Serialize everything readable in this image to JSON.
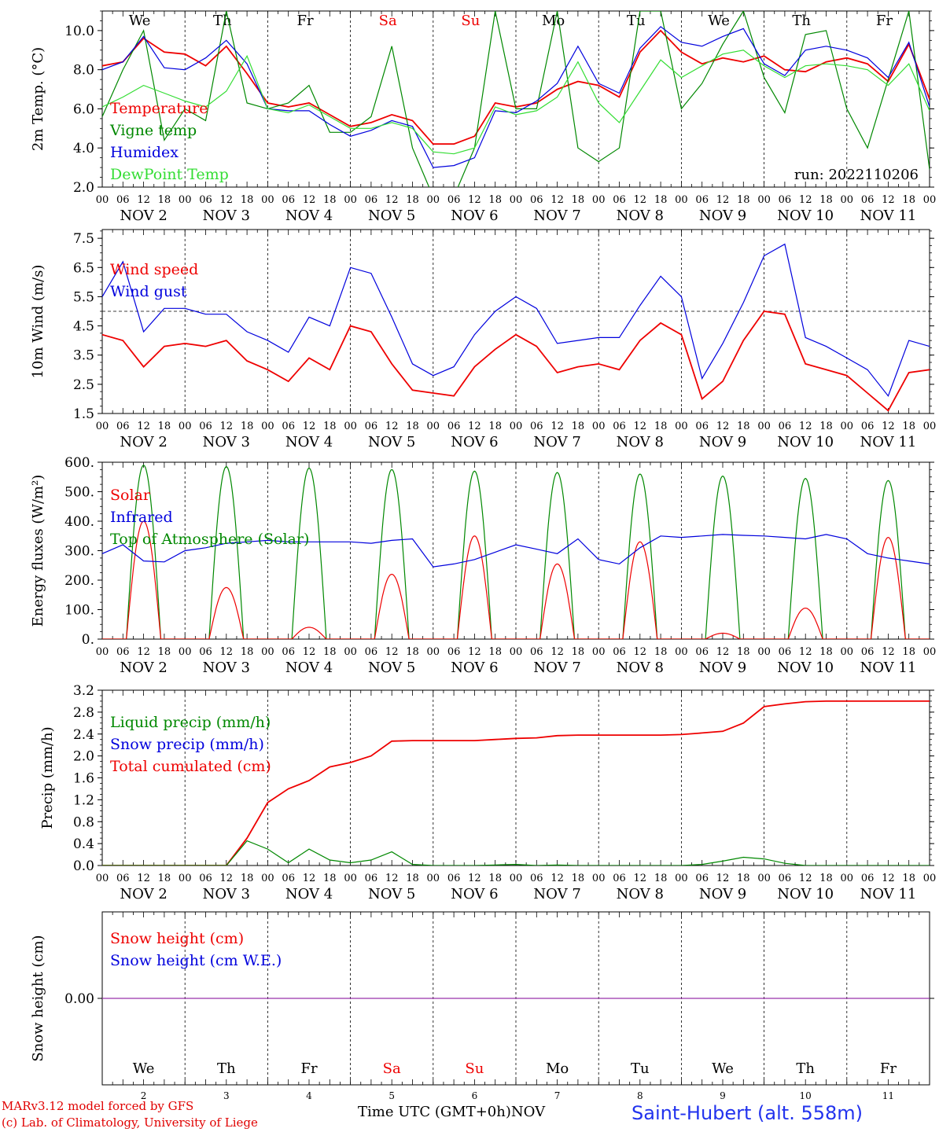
{
  "x_axis": {
    "hour_ticks": [
      "00",
      "06",
      "12",
      "18"
    ],
    "final_tick": "00",
    "dates": [
      "NOV  2",
      "NOV  3",
      "NOV  4",
      "NOV  5",
      "NOV  6",
      "NOV  7",
      "NOV  8",
      "NOV  9",
      "NOV 10",
      "NOV 11"
    ],
    "weekdays": [
      "We",
      "Th",
      "Fr",
      "Sa",
      "Su",
      "Mo",
      "Tu",
      "We",
      "Th",
      "Fr"
    ],
    "weekend_flags": [
      false,
      false,
      false,
      true,
      true,
      false,
      false,
      false,
      false,
      false
    ],
    "day_numbers": [
      "2",
      "3",
      "4",
      "5",
      "6",
      "7",
      "8",
      "9",
      "10",
      "11"
    ],
    "xlabel": "Time UTC (GMT+0h)",
    "month": "NOV"
  },
  "footer": {
    "credit_line1": "MARv3.12 model forced by GFS",
    "credit_line2": "(c) Lab. of Climatology, University of Liege",
    "station": "Saint-Hubert (alt. 558m)"
  },
  "colors": {
    "red": "#ee0000",
    "green_dark": "#008800",
    "blue": "#0000dd",
    "green_light": "#33dd33",
    "purple": "#9933aa",
    "weekend": "#ee0000"
  },
  "chart_data": [
    {
      "type": "line",
      "ylabel": "2m Temp. (°C)",
      "ylim": [
        2.0,
        11.0
      ],
      "yticks": [
        "2.0",
        "4.0",
        "6.0",
        "8.0",
        "10.0"
      ],
      "run_label": "run: 2022110206",
      "legend": [
        "Temperature",
        "Vigne temp",
        "Humidex",
        "DewPoint Temp"
      ],
      "x_hours": [
        0,
        6,
        12,
        18,
        24,
        30,
        36,
        42,
        48,
        54,
        60,
        66,
        72,
        78,
        84,
        90,
        96,
        102,
        108,
        114,
        120,
        126,
        132,
        138,
        144,
        150,
        156,
        162,
        168,
        174,
        180,
        186,
        192,
        198,
        204,
        210,
        216,
        222,
        228,
        234,
        240
      ],
      "series": [
        {
          "name": "Temperature",
          "color": "red",
          "values": [
            8.2,
            8.4,
            9.6,
            8.9,
            8.8,
            8.2,
            9.2,
            7.8,
            6.3,
            6.1,
            6.3,
            5.7,
            5.1,
            5.3,
            5.7,
            5.4,
            4.2,
            4.2,
            4.6,
            6.3,
            6.1,
            6.3,
            7.0,
            7.4,
            7.2,
            6.6,
            8.9,
            10.0,
            8.9,
            8.3,
            8.6,
            8.4,
            8.7,
            8.0,
            7.9,
            8.4,
            8.6,
            8.3,
            7.4,
            9.3,
            6.5
          ]
        },
        {
          "name": "Vigne temp",
          "color": "green_dark",
          "values": [
            5.6,
            8.0,
            10.0,
            4.4,
            6.0,
            5.4,
            11.0,
            6.3,
            6.0,
            6.3,
            7.2,
            4.8,
            4.8,
            5.6,
            9.2,
            4.0,
            1.5,
            1.5,
            4.0,
            11.0,
            6.0,
            6.0,
            11.0,
            4.0,
            3.3,
            4.0,
            11.0,
            11.0,
            6.0,
            7.3,
            9.3,
            11.0,
            7.6,
            5.8,
            9.8,
            10.0,
            6.0,
            4.0,
            7.5,
            11.0,
            2.9
          ]
        },
        {
          "name": "Humidex",
          "color": "blue",
          "values": [
            8.0,
            8.4,
            9.7,
            8.1,
            8.0,
            8.6,
            9.5,
            8.3,
            6.0,
            5.9,
            5.9,
            5.2,
            4.6,
            4.9,
            5.4,
            5.1,
            3.0,
            3.1,
            3.5,
            5.9,
            5.8,
            6.4,
            7.3,
            9.2,
            7.3,
            6.8,
            9.1,
            10.2,
            9.4,
            9.2,
            9.7,
            10.1,
            8.3,
            7.7,
            9.0,
            9.2,
            9.0,
            8.6,
            7.6,
            9.4,
            6.1
          ]
        },
        {
          "name": "DewPoint Temp",
          "color": "green_light",
          "values": [
            6.1,
            6.6,
            7.2,
            6.8,
            6.4,
            6.1,
            6.9,
            8.7,
            6.0,
            5.8,
            6.2,
            5.6,
            5.0,
            5.0,
            5.3,
            5.0,
            3.8,
            3.7,
            4.0,
            6.1,
            5.7,
            5.9,
            6.6,
            8.4,
            6.3,
            5.3,
            6.9,
            8.5,
            7.6,
            8.2,
            8.8,
            9.0,
            8.2,
            7.6,
            8.2,
            8.3,
            8.2,
            8.0,
            7.2,
            8.3,
            5.9
          ]
        }
      ]
    },
    {
      "type": "line",
      "ylabel": "10m Wind (m/s)",
      "ylim": [
        1.5,
        7.8
      ],
      "yticks": [
        "1.5",
        "2.5",
        "3.5",
        "4.5",
        "5.5",
        "6.5",
        "7.5"
      ],
      "reference_line": 5.0,
      "legend": [
        "Wind speed",
        "Wind gust"
      ],
      "x_hours": [
        0,
        6,
        12,
        18,
        24,
        30,
        36,
        42,
        48,
        54,
        60,
        66,
        72,
        78,
        84,
        90,
        96,
        102,
        108,
        114,
        120,
        126,
        132,
        138,
        144,
        150,
        156,
        162,
        168,
        174,
        180,
        186,
        192,
        198,
        204,
        210,
        216,
        222,
        228,
        234,
        240
      ],
      "series": [
        {
          "name": "Wind speed",
          "color": "red",
          "values": [
            4.2,
            4.0,
            3.1,
            3.8,
            3.9,
            3.8,
            4.0,
            3.3,
            3.0,
            2.6,
            3.4,
            3.0,
            4.5,
            4.3,
            3.2,
            2.3,
            2.2,
            2.1,
            3.1,
            3.7,
            4.2,
            3.8,
            2.9,
            3.1,
            3.2,
            3.0,
            4.0,
            4.6,
            4.2,
            2.0,
            2.6,
            4.0,
            5.0,
            4.9,
            3.2,
            3.0,
            2.8,
            2.2,
            1.6,
            2.9,
            3.0
          ]
        },
        {
          "name": "Wind gust",
          "color": "blue",
          "values": [
            5.5,
            6.7,
            4.3,
            5.1,
            5.1,
            4.9,
            4.9,
            4.3,
            4.0,
            3.6,
            4.8,
            4.5,
            6.5,
            6.3,
            4.8,
            3.2,
            2.8,
            3.1,
            4.2,
            5.0,
            5.5,
            5.1,
            3.9,
            4.0,
            4.1,
            4.1,
            5.2,
            6.2,
            5.5,
            2.7,
            3.9,
            5.3,
            6.9,
            7.3,
            4.1,
            3.8,
            3.4,
            3.0,
            2.1,
            4.0,
            3.8
          ]
        }
      ]
    },
    {
      "type": "line",
      "ylabel": "Energy fluxes (W/m²)",
      "ylim": [
        0,
        600
      ],
      "yticks": [
        "0.",
        "100.",
        "200.",
        "300.",
        "400.",
        "500.",
        "600."
      ],
      "legend": [
        "Solar",
        "Infrared",
        "Top of Atmosphere (Solar)"
      ],
      "toa_peaks": [
        590,
        585,
        580,
        575,
        570,
        565,
        560,
        553,
        545,
        538
      ],
      "solar_peaks": [
        400,
        175,
        40,
        220,
        350,
        255,
        330,
        20,
        105,
        345
      ],
      "x_hours": [
        0,
        6,
        12,
        18,
        24,
        30,
        36,
        42,
        48,
        54,
        60,
        66,
        72,
        78,
        84,
        90,
        96,
        102,
        108,
        114,
        120,
        126,
        132,
        138,
        144,
        150,
        156,
        162,
        168,
        174,
        180,
        186,
        192,
        198,
        204,
        210,
        216,
        222,
        228,
        234,
        240
      ],
      "series": [
        {
          "name": "Infrared",
          "color": "blue",
          "values": [
            290,
            320,
            265,
            262,
            300,
            310,
            325,
            330,
            335,
            330,
            330,
            330,
            330,
            325,
            335,
            340,
            245,
            255,
            270,
            295,
            320,
            305,
            290,
            340,
            270,
            255,
            310,
            350,
            345,
            350,
            355,
            352,
            350,
            345,
            340,
            355,
            340,
            290,
            275,
            265,
            255
          ]
        }
      ]
    },
    {
      "type": "line",
      "ylabel": "Precip (mm/h)",
      "ylim": [
        0,
        3.2
      ],
      "yticks": [
        "0.0",
        "0.4",
        "0.8",
        "1.2",
        "1.6",
        "2.0",
        "2.4",
        "2.8",
        "3.2"
      ],
      "legend": [
        "Liquid precip (mm/h)",
        "Snow precip (mm/h)",
        "Total cumulated (cm)"
      ],
      "x_hours": [
        0,
        6,
        12,
        18,
        24,
        30,
        36,
        42,
        48,
        54,
        60,
        66,
        72,
        78,
        84,
        90,
        96,
        102,
        108,
        114,
        120,
        126,
        132,
        138,
        144,
        150,
        156,
        162,
        168,
        174,
        180,
        186,
        192,
        198,
        204,
        210,
        216,
        222,
        228,
        234,
        240
      ],
      "series": [
        {
          "name": "Total cumulated (cm)",
          "color": "red",
          "values": [
            0,
            0,
            0,
            0,
            0,
            0,
            0,
            0.5,
            1.15,
            1.4,
            1.55,
            1.8,
            1.88,
            2.0,
            2.27,
            2.28,
            2.28,
            2.28,
            2.28,
            2.3,
            2.32,
            2.33,
            2.37,
            2.38,
            2.38,
            2.38,
            2.38,
            2.38,
            2.39,
            2.42,
            2.45,
            2.6,
            2.9,
            2.95,
            2.99,
            3.0,
            3.0,
            3.0,
            3.0,
            3.0,
            3.0
          ]
        },
        {
          "name": "Liquid precip (mm/h)",
          "color": "green_dark",
          "values": [
            0,
            0,
            0,
            0,
            0,
            0,
            0,
            0.45,
            0.3,
            0.05,
            0.3,
            0.1,
            0.05,
            0.1,
            0.25,
            0.02,
            0,
            0,
            0,
            0.01,
            0.02,
            0,
            0.01,
            0,
            0,
            0,
            0,
            0,
            0,
            0.02,
            0.08,
            0.15,
            0.12,
            0.04,
            0,
            0,
            0,
            0,
            0,
            0,
            0
          ]
        }
      ]
    },
    {
      "type": "line",
      "ylabel": "Snow height (cm)",
      "ylim": [
        -1,
        1
      ],
      "yticks": [
        "0.00"
      ],
      "legend": [
        "Snow height (cm)",
        "Snow height (cm W.E.)"
      ],
      "x_hours": [
        0,
        240
      ],
      "series": [
        {
          "name": "Snow height (cm)",
          "color": "purple",
          "values": [
            0,
            0
          ]
        }
      ]
    }
  ]
}
